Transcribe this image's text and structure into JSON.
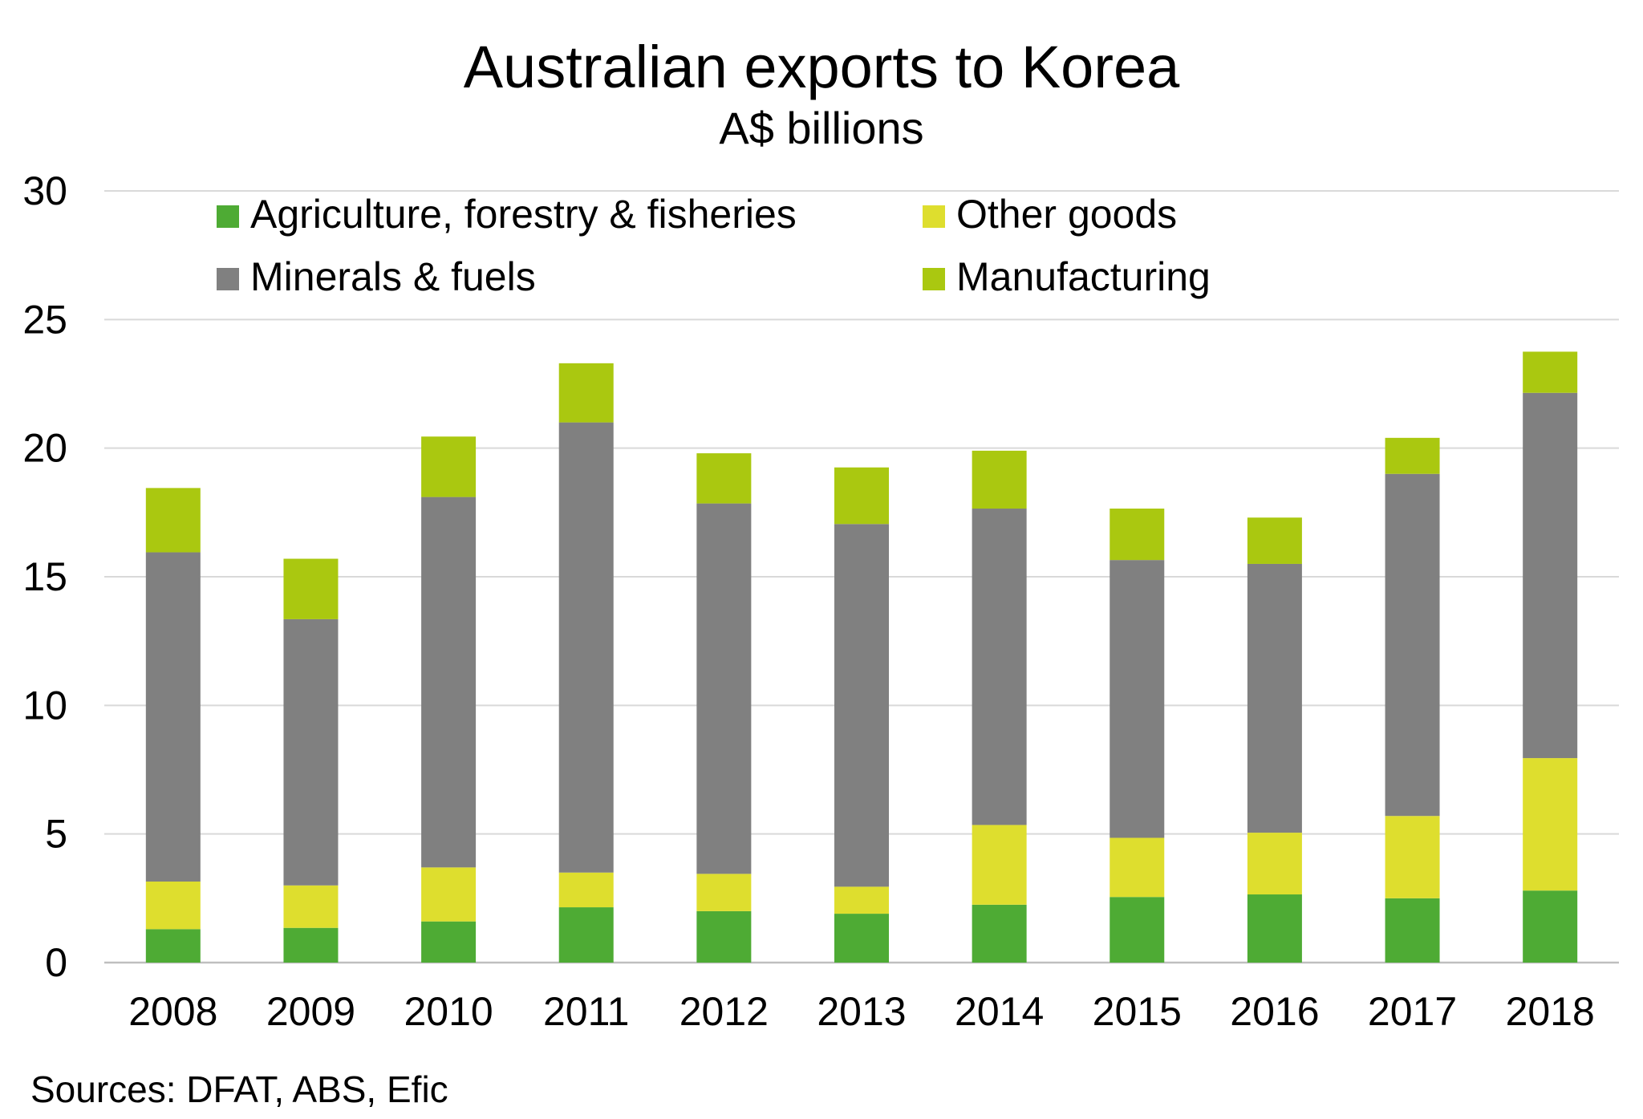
{
  "chart_data": {
    "type": "bar",
    "stacked": true,
    "title": "Australian exports to Korea",
    "subtitle": "A$ billions",
    "source": "Sources: DFAT, ABS, Efic",
    "categories": [
      "2008",
      "2009",
      "2010",
      "2011",
      "2012",
      "2013",
      "2014",
      "2015",
      "2016",
      "2017",
      "2018"
    ],
    "ylim": [
      0,
      30
    ],
    "yticks": [
      0,
      5,
      10,
      15,
      20,
      25,
      30
    ],
    "grid": true,
    "legend_position": "top-left",
    "series": [
      {
        "name": "Agriculture, forestry & fisheries",
        "color": "#4eab34",
        "values": [
          1.3,
          1.35,
          1.6,
          2.15,
          2.0,
          1.9,
          2.25,
          2.55,
          2.65,
          2.5,
          2.8
        ]
      },
      {
        "name": "Other goods",
        "color": "#dede2e",
        "values": [
          1.85,
          1.65,
          2.1,
          1.35,
          1.45,
          1.05,
          3.1,
          2.3,
          2.4,
          3.2,
          5.15
        ]
      },
      {
        "name": "Minerals & fuels",
        "color": "#808080",
        "values": [
          12.8,
          10.35,
          14.4,
          17.5,
          14.4,
          14.1,
          12.3,
          10.8,
          10.45,
          13.3,
          14.2
        ]
      },
      {
        "name": "Manufacturing",
        "color": "#aac810",
        "values": [
          2.5,
          2.35,
          2.35,
          2.3,
          1.95,
          2.2,
          2.25,
          2.0,
          1.8,
          1.4,
          1.6
        ]
      }
    ],
    "legend_order": [
      0,
      1,
      2,
      3
    ]
  }
}
